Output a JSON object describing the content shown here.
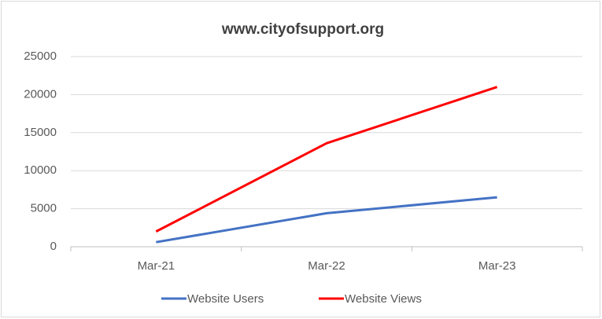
{
  "chart_data": {
    "type": "line",
    "title": "www.cityofsupport.org",
    "categories": [
      "Mar-21",
      "Mar-22",
      "Mar-23"
    ],
    "series": [
      {
        "name": "Website Users",
        "color": "#4472c4",
        "values": [
          600,
          4400,
          6500
        ]
      },
      {
        "name": "Website Views",
        "color": "#ff0000",
        "values": [
          2000,
          13600,
          21000
        ]
      }
    ],
    "ylim": [
      0,
      25000
    ],
    "yticks": [
      0,
      5000,
      10000,
      15000,
      20000,
      25000
    ],
    "grid": true,
    "legend": "bottom"
  }
}
